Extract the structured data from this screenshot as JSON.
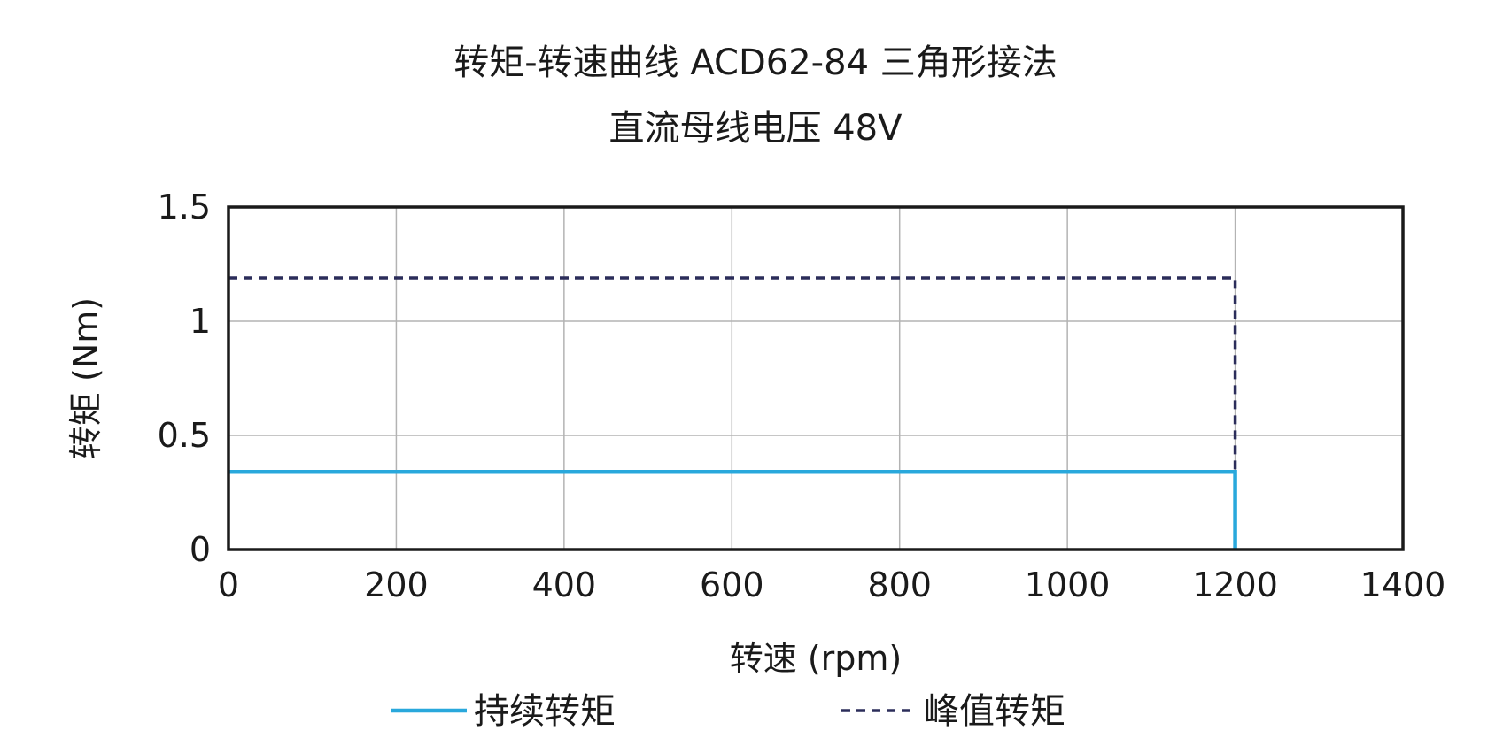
{
  "chart_data": {
    "type": "line",
    "title": "转矩-转速曲线 ACD62-84 三角形接法",
    "subtitle": "直流母线电压 48V",
    "xlabel": "转速 (rpm)",
    "ylabel": "转矩 (Nm)",
    "xlim": [
      0,
      1400
    ],
    "ylim": [
      0,
      1.5
    ],
    "xticks": [
      0,
      200,
      400,
      600,
      800,
      1000,
      1200,
      1400
    ],
    "xtick_labels": [
      "0",
      "200",
      "400",
      "600",
      "800",
      "1000",
      "1200",
      "1400"
    ],
    "yticks": [
      0,
      0.5,
      1,
      1.5
    ],
    "ytick_labels": [
      "0",
      "0.5",
      "1",
      "1.5"
    ],
    "grid": true,
    "legend_position": "bottom",
    "series": [
      {
        "name": "持续转矩",
        "color": "#29a8dc",
        "dash": "solid",
        "x": [
          0,
          1200,
          1200
        ],
        "y": [
          0.34,
          0.34,
          0
        ]
      },
      {
        "name": "峰值转矩",
        "color": "#2b2d5a",
        "dash": "dashed",
        "x": [
          0,
          1200,
          1200
        ],
        "y": [
          1.19,
          1.19,
          0
        ]
      }
    ]
  }
}
